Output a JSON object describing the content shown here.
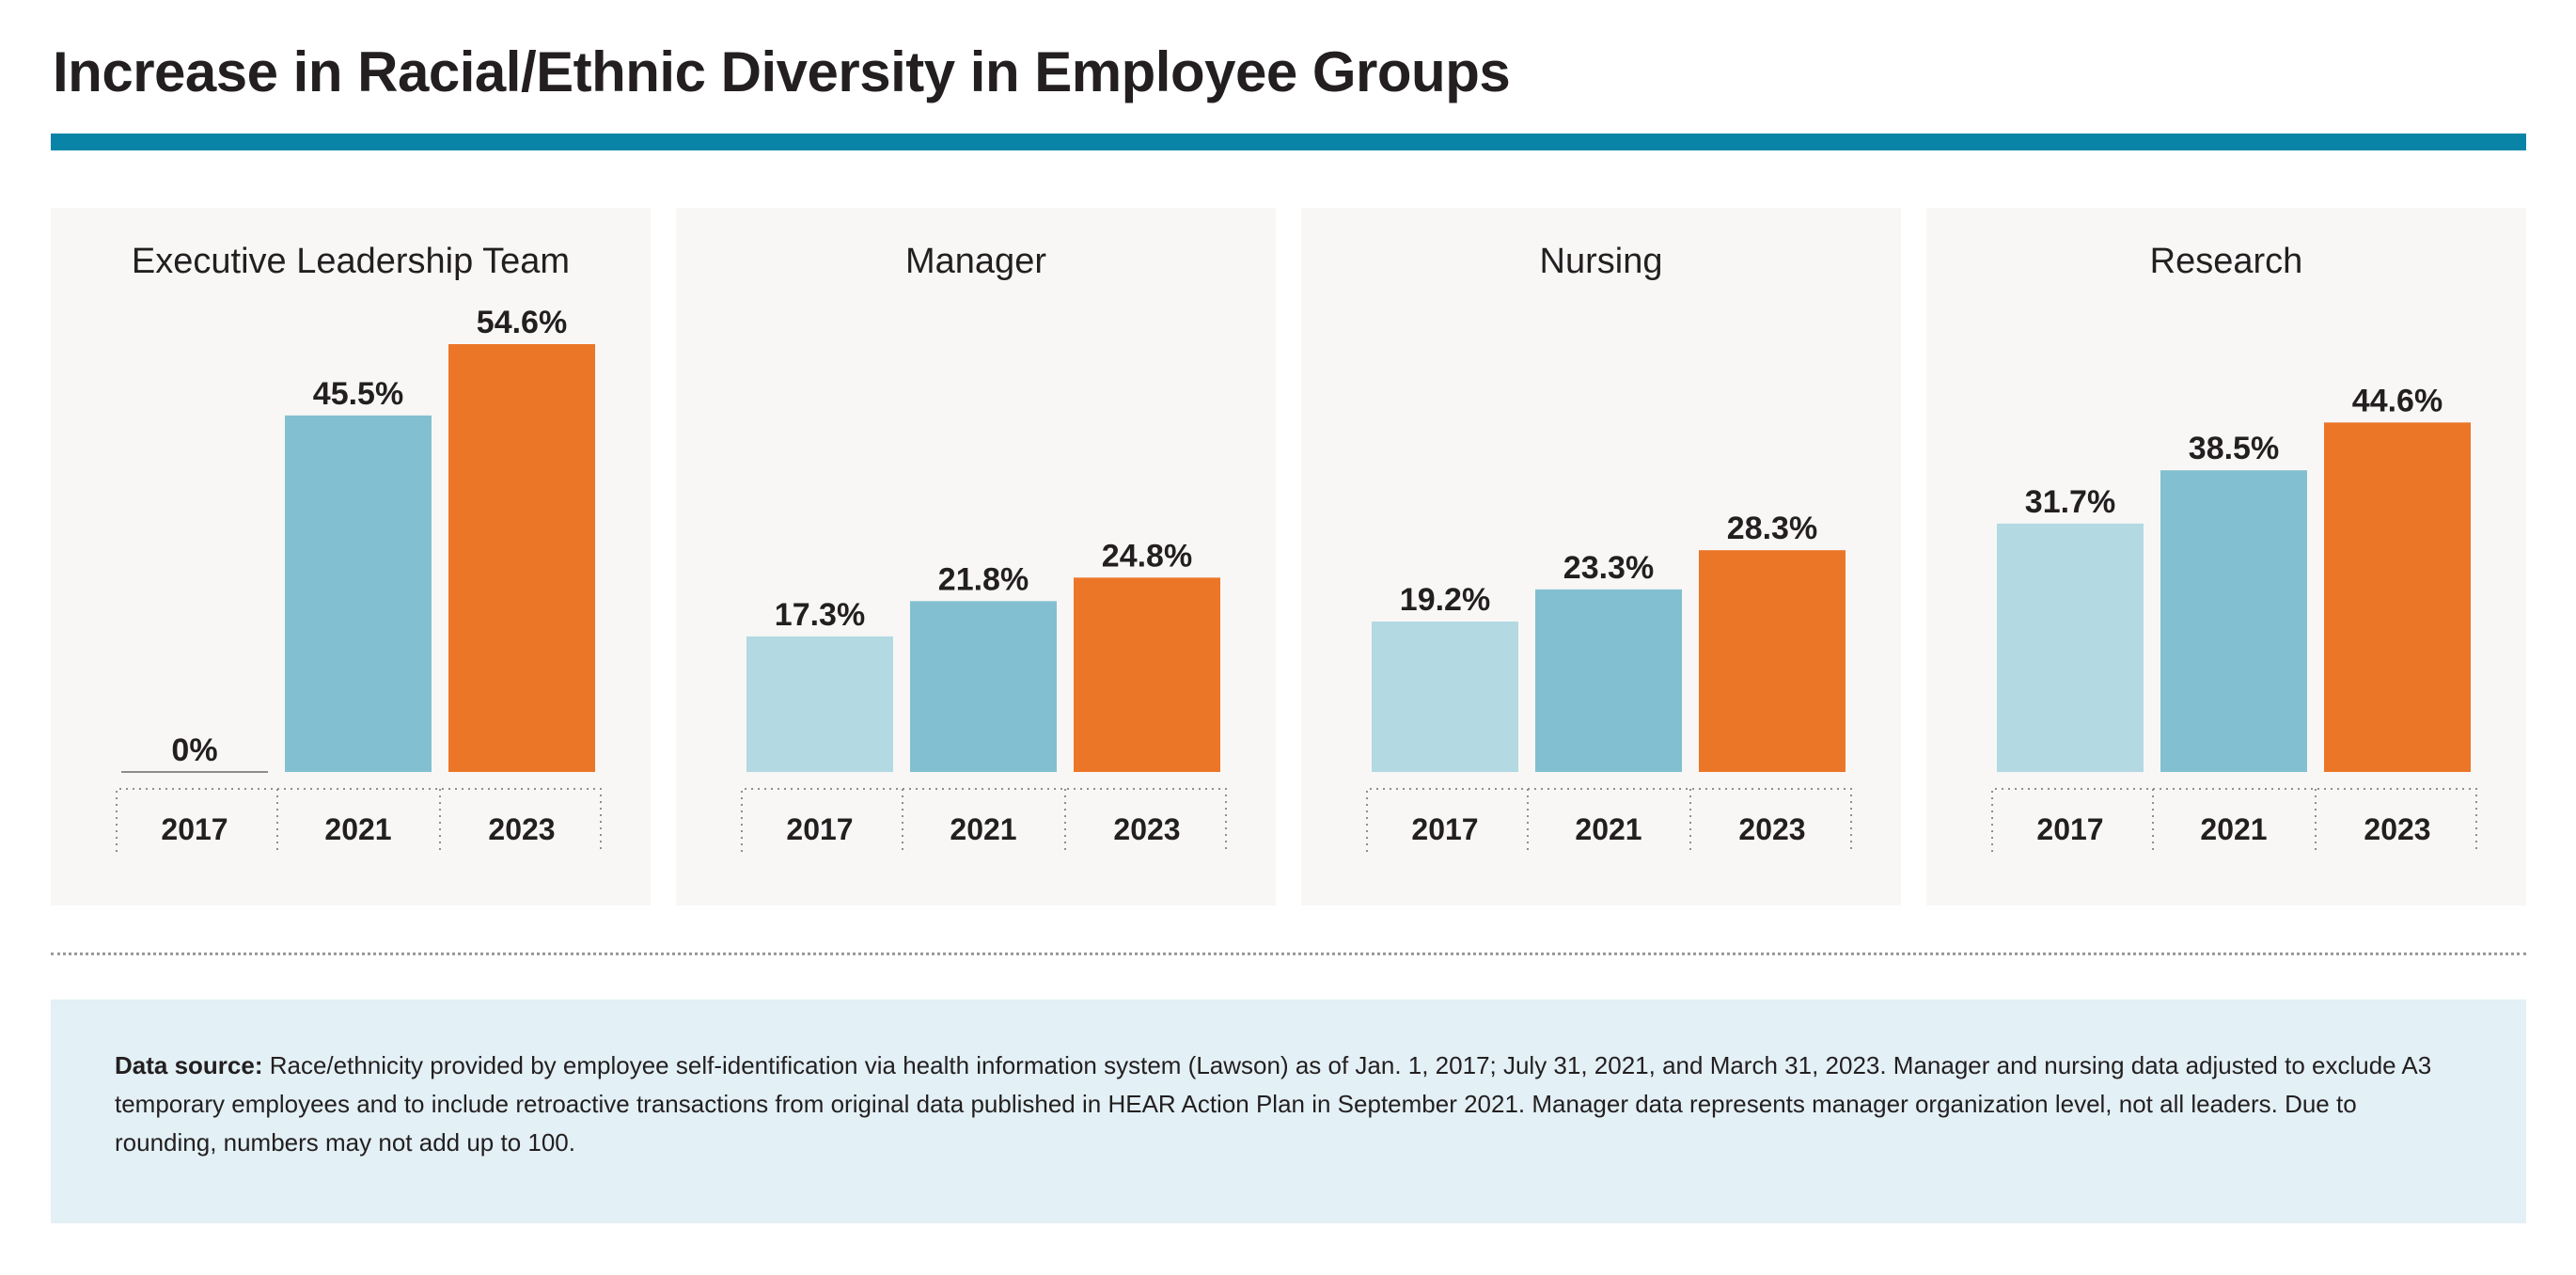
{
  "page": {
    "title": "Increase in Racial/Ethnic Diversity in Employee Groups"
  },
  "colors": {
    "accent_rule": "#0a84a6",
    "bar_2017": "#b3d9e3",
    "bar_2021": "#82c0d1",
    "bar_2023": "#ec7628",
    "panel_bg": "#f8f7f6",
    "note_bg": "#e3f0f5"
  },
  "chart_data": [
    {
      "type": "bar",
      "title": "Executive Leadership Team",
      "categories": [
        "2017",
        "2021",
        "2023"
      ],
      "values": [
        0,
        45.5,
        54.6
      ],
      "labels": [
        "0%",
        "45.5%",
        "54.6%"
      ],
      "ylim": [
        0,
        60
      ],
      "grid": false
    },
    {
      "type": "bar",
      "title": "Manager",
      "categories": [
        "2017",
        "2021",
        "2023"
      ],
      "values": [
        17.3,
        21.8,
        24.8
      ],
      "labels": [
        "17.3%",
        "21.8%",
        "24.8%"
      ],
      "ylim": [
        0,
        60
      ],
      "grid": false
    },
    {
      "type": "bar",
      "title": "Nursing",
      "categories": [
        "2017",
        "2021",
        "2023"
      ],
      "values": [
        19.2,
        23.3,
        28.3
      ],
      "labels": [
        "19.2%",
        "23.3%",
        "28.3%"
      ],
      "ylim": [
        0,
        60
      ],
      "grid": false
    },
    {
      "type": "bar",
      "title": "Research",
      "categories": [
        "2017",
        "2021",
        "2023"
      ],
      "values": [
        31.7,
        38.5,
        44.6
      ],
      "labels": [
        "31.7%",
        "38.5%",
        "44.6%"
      ],
      "ylim": [
        0,
        60
      ],
      "grid": false
    }
  ],
  "note": {
    "label": "Data source:",
    "text": "Race/ethnicity provided by employee self-identification via health information system (Lawson) as of Jan. 1, 2017; July 31, 2021, and March 31, 2023. Manager and nursing data adjusted to exclude A3 temporary employees and to include retroactive transactions from original data published in HEAR Action Plan in September 2021. Manager data represents manager organization level, not all leaders. Due to rounding, numbers may not add up to 100."
  }
}
